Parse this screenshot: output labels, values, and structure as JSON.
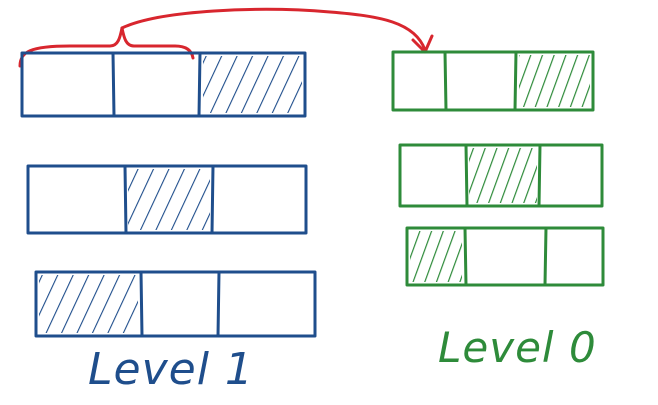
{
  "colors": {
    "level1": "#1f4e8c",
    "level0": "#2e8b3a",
    "arrow": "#d8262e",
    "background": "#ffffff"
  },
  "labels": {
    "level1": "Level 1",
    "level0": "Level 0"
  },
  "level1": {
    "rows": [
      {
        "cells": 3,
        "hatched_cell": 3
      },
      {
        "cells": 3,
        "hatched_cell": 2
      },
      {
        "cells": 3,
        "hatched_cell": 1
      }
    ]
  },
  "level0": {
    "rows": [
      {
        "cells": 3,
        "hatched_cell": 3
      },
      {
        "cells": 3,
        "hatched_cell": 2
      },
      {
        "cells": 3,
        "hatched_cell": 1
      }
    ]
  },
  "icons": {
    "brace": "curly-brace-icon",
    "arrow": "curved-arrow-icon"
  }
}
